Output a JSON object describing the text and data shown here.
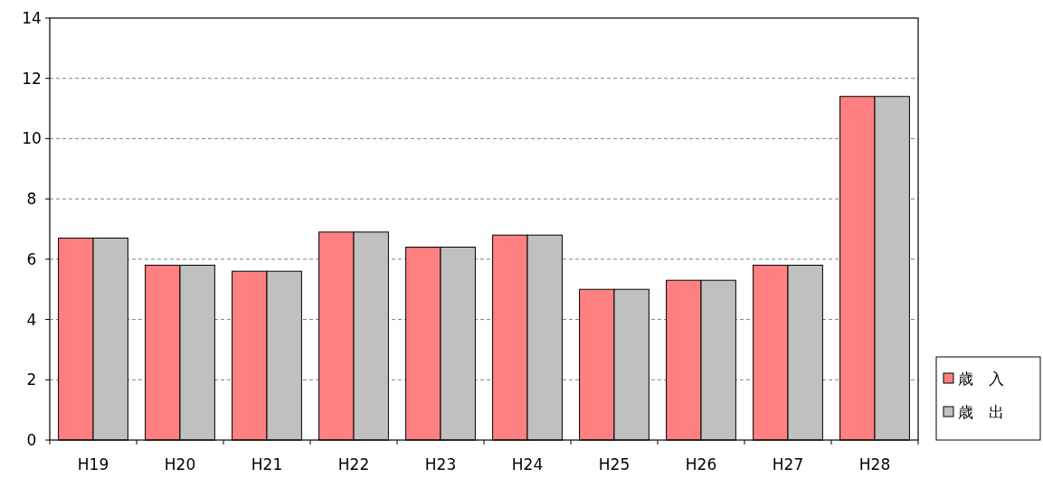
{
  "chart_data": {
    "type": "bar",
    "categories": [
      "H19",
      "H20",
      "H21",
      "H22",
      "H23",
      "H24",
      "H25",
      "H26",
      "H27",
      "H28"
    ],
    "series": [
      {
        "name": "歳　入",
        "color": "#ff8080",
        "values": [
          6.7,
          5.8,
          5.6,
          6.9,
          6.4,
          6.8,
          5.0,
          5.3,
          5.8,
          11.4
        ]
      },
      {
        "name": "歳　出",
        "color": "#c0c0c0",
        "values": [
          6.7,
          5.8,
          5.6,
          6.9,
          6.4,
          6.8,
          5.0,
          5.3,
          5.8,
          11.4
        ]
      }
    ],
    "ylim": [
      0,
      14
    ],
    "yticks": [
      0,
      2,
      4,
      6,
      8,
      10,
      12,
      14
    ],
    "grid": "y",
    "legend": "bottom right"
  }
}
